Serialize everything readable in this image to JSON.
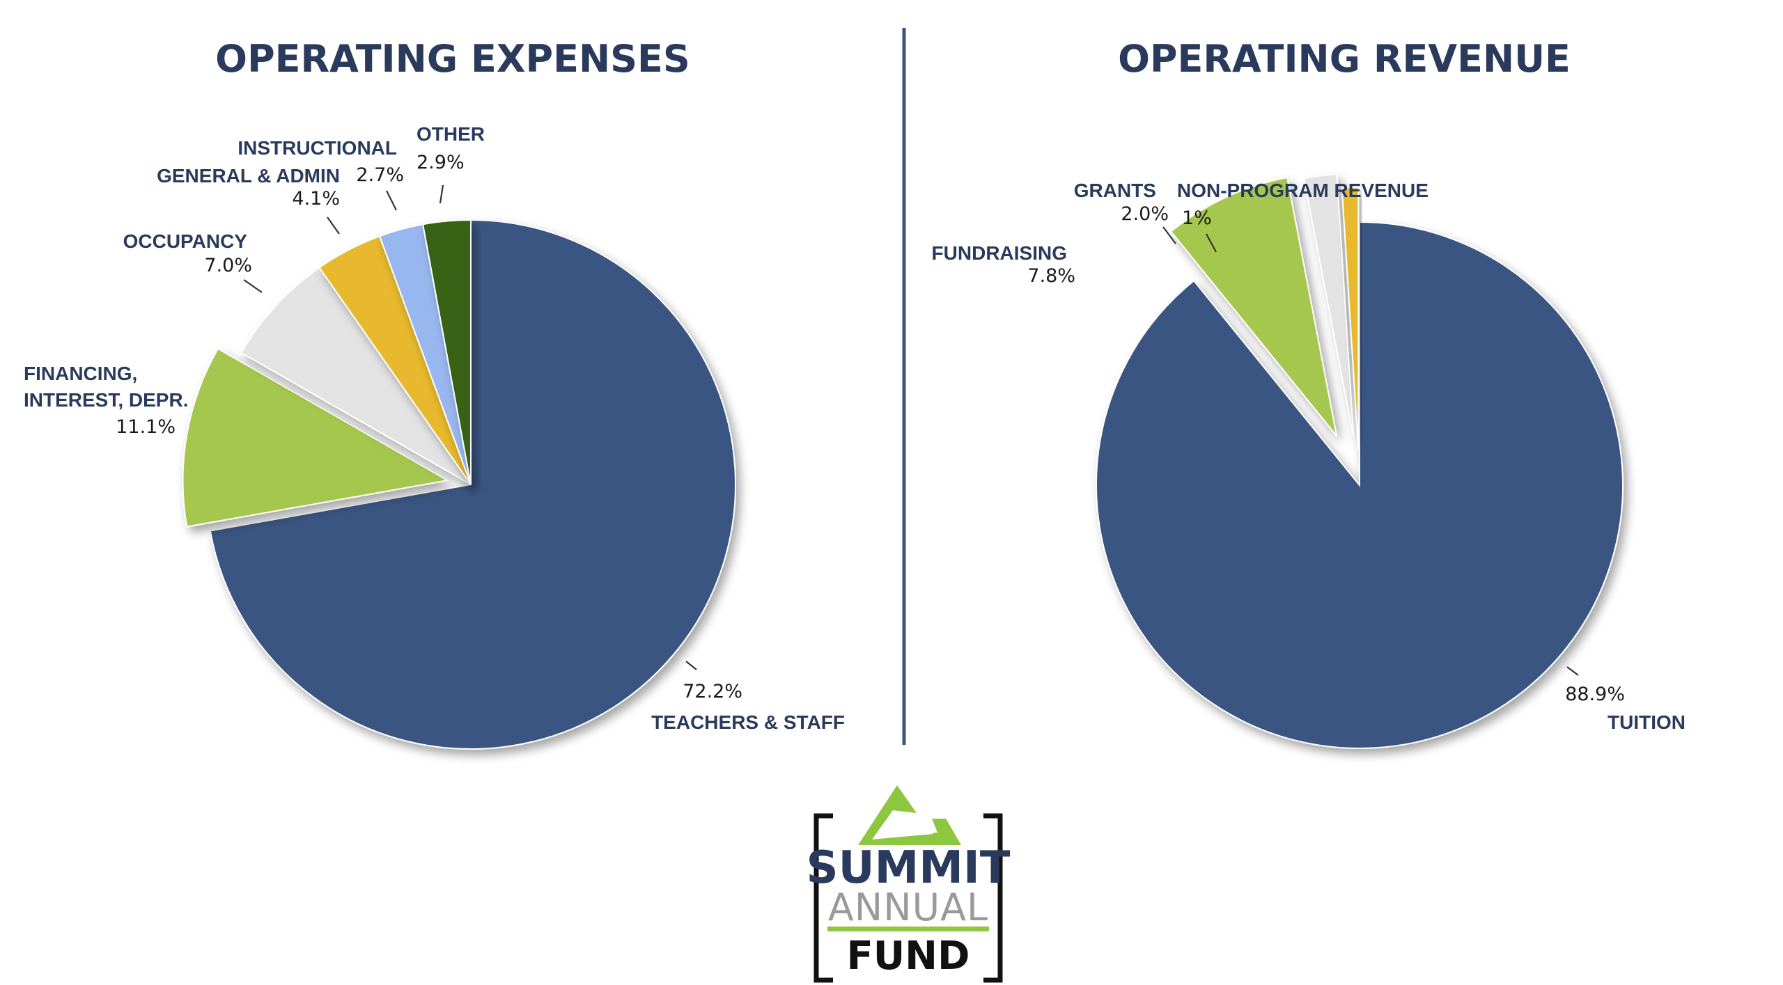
{
  "chart_data": [
    {
      "type": "pie",
      "title": "OPERATING EXPENSES",
      "slices": [
        {
          "label": "TEACHERS & STAFF",
          "value": 72.2,
          "value_label": "72.2%",
          "color": "#3b5582"
        },
        {
          "label": "FINANCING, INTEREST, DEPR.",
          "value": 11.1,
          "value_label": "11.1%",
          "color": "#a5c74d",
          "exploded": true
        },
        {
          "label": "OCCUPANCY",
          "value": 7.0,
          "value_label": "7.0%",
          "color": "#e3e3e3"
        },
        {
          "label": "GENERAL & ADMIN",
          "value": 4.1,
          "value_label": "4.1%",
          "color": "#e8b92f"
        },
        {
          "label": "INSTRUCTIONAL",
          "value": 2.7,
          "value_label": "2.7%",
          "color": "#98b7ee"
        },
        {
          "label": "OTHER",
          "value": 2.9,
          "value_label": "2.9%",
          "color": "#376412"
        }
      ]
    },
    {
      "type": "pie",
      "title": "OPERATING REVENUE",
      "slices": [
        {
          "label": "TUITION",
          "value": 88.9,
          "value_label": "88.9%",
          "color": "#3b5582"
        },
        {
          "label": "FUNDRAISING",
          "value": 7.8,
          "value_label": "7.8%",
          "color": "#a5c74d",
          "exploded": true
        },
        {
          "label": "GRANTS",
          "value": 2.0,
          "value_label": "2.0%",
          "color": "#e3e3e3",
          "exploded": true
        },
        {
          "label": "NON-PROGRAM REVENUE",
          "value": 1,
          "value_label": "1%",
          "color": "#e8b92f",
          "exploded": true
        }
      ]
    }
  ],
  "logo": {
    "line1": "SUMMIT",
    "line2": "ANNUAL",
    "line3": "FUND",
    "colors": {
      "navy": "#2a3a5c",
      "green": "#8dc63f",
      "gray": "#9a9a9a",
      "frame": "#111111"
    }
  },
  "colors": {
    "divider": "#3b5582",
    "title": "#2a3a5c"
  }
}
